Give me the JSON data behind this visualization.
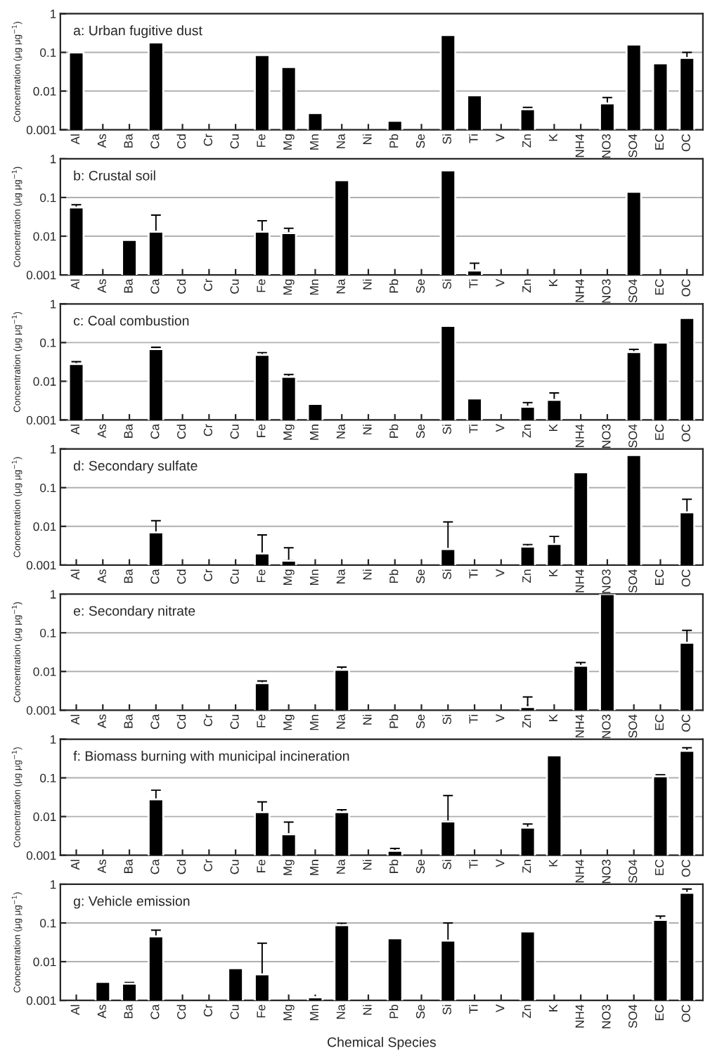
{
  "chart_data": [
    {
      "type": "bar",
      "title": "a: Urban fugitive dust",
      "ylabel": "Concentration (μg μg$^{−1}$)",
      "log": "y",
      "grid": "y",
      "ylim": [
        0.001,
        1
      ],
      "yticks": [
        0.001,
        0.01,
        0.1,
        1
      ],
      "categories": [
        "Al",
        "As",
        "Ba",
        "Ca",
        "Cd",
        "Cr",
        "Cu",
        "Fe",
        "Mg",
        "Mn",
        "Na",
        "Ni",
        "Pb",
        "Se",
        "Si",
        "Ti",
        "V",
        "Zn",
        "K",
        "NH4",
        "NO3",
        "SO4",
        "EC",
        "OC"
      ],
      "color": "#000000",
      "values": [
        0.1,
        null,
        null,
        0.18,
        null,
        null,
        null,
        0.085,
        0.042,
        0.0027,
        null,
        null,
        0.0017,
        null,
        0.28,
        0.0078,
        null,
        0.0034,
        null,
        null,
        0.0048,
        0.16,
        0.052,
        0.072
      ],
      "errors": [
        null,
        null,
        null,
        null,
        null,
        null,
        null,
        null,
        null,
        null,
        null,
        null,
        null,
        null,
        null,
        null,
        null,
        [
          0.0034,
          0.0038
        ],
        null,
        null,
        [
          0.0048,
          0.0068
        ],
        null,
        null,
        [
          0.072,
          0.1
        ]
      ]
    },
    {
      "type": "bar",
      "title": "b: Crustal soil",
      "ylabel": "Concentration (μg μg$^{−1}$)",
      "log": "y",
      "grid": "y",
      "ylim": [
        0.001,
        1
      ],
      "yticks": [
        0.001,
        0.01,
        0.1,
        1
      ],
      "categories": [
        "Al",
        "As",
        "Ba",
        "Ca",
        "Cd",
        "Cr",
        "Cu",
        "Fe",
        "Mg",
        "Mn",
        "Na",
        "Ni",
        "Pb",
        "Se",
        "Si",
        "Ti",
        "V",
        "Zn",
        "K",
        "NH4",
        "NO3",
        "SO4",
        "EC",
        "OC"
      ],
      "color": "#000000",
      "values": [
        0.055,
        null,
        0.008,
        0.013,
        null,
        null,
        null,
        0.013,
        0.012,
        null,
        0.28,
        null,
        null,
        null,
        0.5,
        0.0013,
        null,
        null,
        null,
        null,
        null,
        0.14,
        null,
        null
      ],
      "errors": [
        [
          0.055,
          0.065
        ],
        null,
        null,
        [
          0.013,
          0.035
        ],
        null,
        null,
        null,
        [
          0.013,
          0.025
        ],
        [
          0.012,
          0.016
        ],
        null,
        null,
        null,
        null,
        null,
        null,
        [
          0.0013,
          0.002
        ],
        null,
        null,
        null,
        null,
        null,
        null,
        null,
        null
      ]
    },
    {
      "type": "bar",
      "title": "c: Coal combustion",
      "ylabel": "Concentration (μg μg$^{−1}$)",
      "log": "y",
      "grid": "y",
      "ylim": [
        0.001,
        1
      ],
      "yticks": [
        0.001,
        0.01,
        0.1,
        1
      ],
      "categories": [
        "Al",
        "As",
        "Ba",
        "Ca",
        "Cd",
        "Cr",
        "Cu",
        "Fe",
        "Mg",
        "Mn",
        "Na",
        "Ni",
        "Pb",
        "Se",
        "Si",
        "Ti",
        "V",
        "Zn",
        "K",
        "NH4",
        "NO3",
        "SO4",
        "EC",
        "OC"
      ],
      "color": "#000000",
      "values": [
        0.028,
        null,
        null,
        0.068,
        null,
        null,
        null,
        0.048,
        0.013,
        0.0026,
        null,
        null,
        null,
        null,
        0.27,
        0.0036,
        null,
        0.0022,
        0.0033,
        null,
        null,
        0.057,
        0.1,
        0.43
      ],
      "errors": [
        [
          0.028,
          0.032
        ],
        null,
        null,
        [
          0.068,
          0.076
        ],
        null,
        null,
        null,
        [
          0.048,
          0.055
        ],
        [
          0.013,
          0.015
        ],
        null,
        null,
        null,
        null,
        null,
        null,
        null,
        null,
        [
          0.0022,
          0.0028
        ],
        [
          0.0033,
          0.005
        ],
        null,
        null,
        [
          0.057,
          0.067
        ],
        null,
        null
      ]
    },
    {
      "type": "bar",
      "title": "d: Secondary sulfate",
      "ylabel": "Concentration (μg μg$^{−1}$)",
      "log": "y",
      "grid": "y",
      "ylim": [
        0.001,
        1
      ],
      "yticks": [
        0.001,
        0.01,
        0.1,
        1
      ],
      "categories": [
        "Al",
        "As",
        "Ba",
        "Ca",
        "Cd",
        "Cr",
        "Cu",
        "Fe",
        "Mg",
        "Mn",
        "Na",
        "Ni",
        "Pb",
        "Se",
        "Si",
        "Ti",
        "V",
        "Zn",
        "K",
        "NH4",
        "NO3",
        "SO4",
        "EC",
        "OC"
      ],
      "color": "#000000",
      "values": [
        null,
        null,
        null,
        0.007,
        null,
        null,
        null,
        0.002,
        0.0013,
        null,
        null,
        null,
        null,
        null,
        0.0026,
        null,
        null,
        0.003,
        0.0035,
        0.25,
        null,
        0.7,
        null,
        0.023
      ],
      "errors": [
        null,
        null,
        null,
        [
          0.007,
          0.014
        ],
        null,
        null,
        null,
        [
          0.002,
          0.006
        ],
        [
          0.0013,
          0.0028
        ],
        null,
        null,
        null,
        null,
        null,
        [
          0.0026,
          0.013
        ],
        null,
        null,
        [
          0.003,
          0.0034
        ],
        [
          0.0035,
          0.0055
        ],
        null,
        null,
        null,
        null,
        [
          0.023,
          0.05
        ]
      ]
    },
    {
      "type": "bar",
      "title": "e: Secondary nitrate",
      "ylabel": "Concentration (μg μg$^{−1}$)",
      "log": "y",
      "grid": "y",
      "ylim": [
        0.001,
        1
      ],
      "yticks": [
        0.001,
        0.01,
        0.1,
        1
      ],
      "categories": [
        "Al",
        "As",
        "Ba",
        "Ca",
        "Cd",
        "Cr",
        "Cu",
        "Fe",
        "Mg",
        "Mn",
        "Na",
        "Ni",
        "Pb",
        "Se",
        "Si",
        "Ti",
        "V",
        "Zn",
        "K",
        "NH4",
        "NO3",
        "SO4",
        "EC",
        "OC"
      ],
      "color": "#000000",
      "values": [
        null,
        null,
        null,
        null,
        null,
        null,
        null,
        0.005,
        null,
        null,
        0.011,
        null,
        null,
        null,
        null,
        null,
        null,
        0.0012,
        null,
        0.014,
        1.0,
        null,
        null,
        0.055
      ],
      "errors": [
        null,
        null,
        null,
        null,
        null,
        null,
        null,
        [
          0.005,
          0.0057
        ],
        null,
        null,
        [
          0.011,
          0.013
        ],
        null,
        null,
        null,
        null,
        null,
        null,
        [
          0.0012,
          0.0022
        ],
        null,
        [
          0.014,
          0.017
        ],
        null,
        null,
        null,
        [
          0.055,
          0.115
        ]
      ]
    },
    {
      "type": "bar",
      "title": "f: Biomass burning with municipal incineration",
      "ylabel": "Concentration (μg μg$^{−1}$)",
      "log": "y",
      "grid": "y",
      "ylim": [
        0.001,
        1
      ],
      "yticks": [
        0.001,
        0.01,
        0.1,
        1
      ],
      "categories": [
        "Al",
        "As",
        "Ba",
        "Ca",
        "Cd",
        "Cr",
        "Cu",
        "Fe",
        "Mg",
        "Mn",
        "Na",
        "Ni",
        "Pb",
        "Se",
        "Si",
        "Ti",
        "V",
        "Zn",
        "K",
        "NH4",
        "NO3",
        "SO4",
        "EC",
        "OC"
      ],
      "color": "#000000",
      "values": [
        null,
        null,
        null,
        0.028,
        null,
        null,
        null,
        0.013,
        0.0035,
        null,
        0.013,
        null,
        0.0013,
        null,
        0.0075,
        null,
        null,
        0.0052,
        0.38,
        null,
        null,
        null,
        0.11,
        0.5
      ],
      "errors": [
        null,
        null,
        null,
        [
          0.028,
          0.048
        ],
        null,
        null,
        null,
        [
          0.013,
          0.024
        ],
        [
          0.0035,
          0.0072
        ],
        null,
        [
          0.013,
          0.015
        ],
        null,
        [
          0.0013,
          0.0015
        ],
        null,
        [
          0.0075,
          0.035
        ],
        null,
        null,
        [
          0.0052,
          0.0064
        ],
        null,
        null,
        null,
        null,
        [
          0.11,
          0.12
        ],
        [
          0.5,
          0.6
        ]
      ]
    },
    {
      "type": "bar",
      "title": "g: Vehicle emission",
      "ylabel": "Concentration (μg μg$^{−1}$)",
      "xlabel": "Chemical Species",
      "log": "y",
      "grid": "y",
      "ylim": [
        0.001,
        1
      ],
      "yticks": [
        0.001,
        0.01,
        0.1,
        1
      ],
      "categories": [
        "Al",
        "As",
        "Ba",
        "Ca",
        "Cd",
        "Cr",
        "Cu",
        "Fe",
        "Mg",
        "Mn",
        "Na",
        "Ni",
        "Pb",
        "Se",
        "Si",
        "Ti",
        "V",
        "Zn",
        "K",
        "NH4",
        "NO3",
        "SO4",
        "EC",
        "OC"
      ],
      "color": "#000000",
      "values": [
        null,
        0.003,
        0.0027,
        0.045,
        null,
        null,
        0.0068,
        0.0047,
        null,
        0.0012,
        0.088,
        null,
        0.04,
        null,
        0.035,
        null,
        null,
        0.06,
        null,
        null,
        null,
        null,
        0.12,
        0.6
      ],
      "errors": [
        null,
        null,
        [
          0.0027,
          0.0029
        ],
        [
          0.045,
          0.065
        ],
        null,
        null,
        null,
        [
          0.0047,
          0.03
        ],
        null,
        null,
        [
          0.088,
          0.098
        ],
        null,
        null,
        null,
        [
          0.035,
          0.1
        ],
        null,
        null,
        null,
        null,
        null,
        null,
        null,
        [
          0.12,
          0.15
        ],
        [
          0.6,
          0.75
        ]
      ]
    }
  ]
}
